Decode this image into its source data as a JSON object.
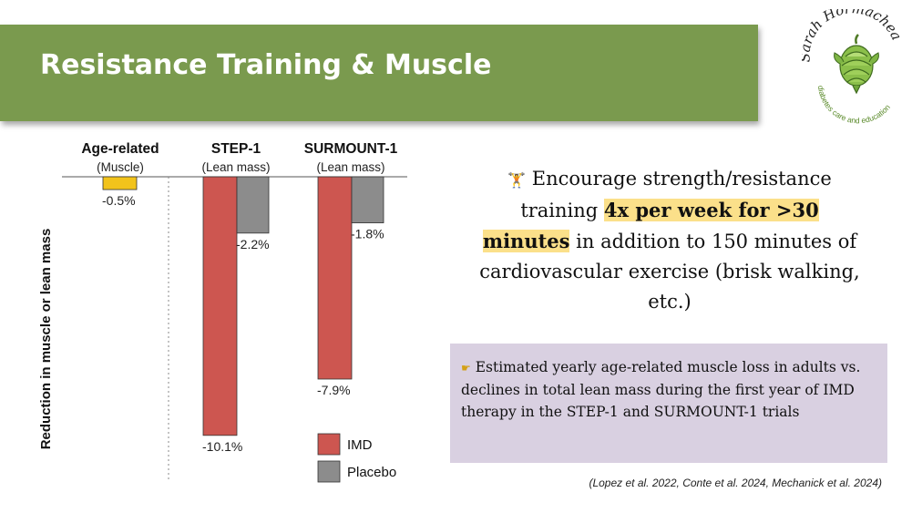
{
  "slide": {
    "title": "Resistance Training & Muscle",
    "logo": {
      "name": "Sarah Hormachea",
      "tagline": "diabetes care and education",
      "icon": "artichoke-icon"
    },
    "encourage": {
      "icon": "weightlifter-emoji",
      "icon_glyph": "🏋",
      "part1": "Encourage strength/resistance training ",
      "highlight": "4x per week for >30 minutes",
      "part2": " in addition to 150 minutes of cardiovascular exercise (brisk walking, etc.)"
    },
    "note": {
      "icon": "pointing-hand-emoji",
      "icon_glyph": "☛",
      "text": "Estimated yearly age-related muscle loss in adults vs. declines in total lean mass during the first year of IMD therapy in the STEP-1 and SURMOUNT-1 trials"
    },
    "citation": "(Lopez et al. 2022, Conte et al. 2024, Mechanick et al. 2024)",
    "colors": {
      "banner": "#7a9a4e",
      "highlight": "#fbe08a",
      "note_bg": "#d9d0e1"
    }
  },
  "chart_data": {
    "type": "bar",
    "ylabel": "Reduction in muscle or lean mass",
    "groups": [
      {
        "title": "Age-related",
        "subtitle": "(Muscle)",
        "bars": [
          {
            "value": -0.5,
            "label": "-0.5%",
            "color": "#f2c31b"
          }
        ]
      },
      {
        "title": "STEP-1",
        "subtitle": "(Lean mass)",
        "bars": [
          {
            "series": "IMD",
            "value": -10.1,
            "label": "-10.1%",
            "color": "#cd5650"
          },
          {
            "series": "Placebo",
            "value": -2.2,
            "label": "-2.2%",
            "color": "#8c8c8c"
          }
        ]
      },
      {
        "title": "SURMOUNT-1",
        "subtitle": "(Lean mass)",
        "bars": [
          {
            "series": "IMD",
            "value": -7.9,
            "label": "-7.9%",
            "color": "#cd5650"
          },
          {
            "series": "Placebo",
            "value": -1.8,
            "label": "-1.8%",
            "color": "#8c8c8c"
          }
        ]
      }
    ],
    "legend": [
      {
        "name": "IMD",
        "color": "#cd5650"
      },
      {
        "name": "Placebo",
        "color": "#8c8c8c"
      }
    ],
    "legend_position": "bottom-right",
    "ylim": [
      -10.5,
      0
    ]
  }
}
